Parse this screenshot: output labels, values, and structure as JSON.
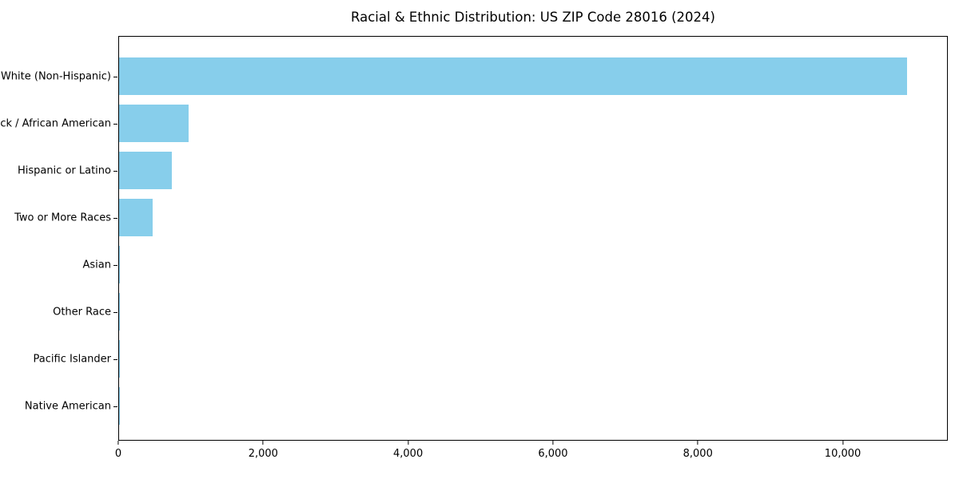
{
  "chart_data": {
    "type": "bar",
    "orientation": "horizontal",
    "title": "Racial & Ethnic Distribution: US ZIP Code 28016 (2024)",
    "categories": [
      "White (Non-Hispanic)",
      "Black / African American",
      "Hispanic or Latino",
      "Two or More Races",
      "Asian",
      "Other Race",
      "Pacific Islander",
      "Native American"
    ],
    "values": [
      10900,
      960,
      730,
      460,
      0,
      0,
      0,
      0
    ],
    "xlabel": "",
    "ylabel": "",
    "xlim": [
      0,
      11450
    ],
    "x_ticks": [
      0,
      2000,
      4000,
      6000,
      8000,
      10000
    ],
    "x_tick_labels": [
      "0",
      "2,000",
      "4,000",
      "6,000",
      "8,000",
      "10,000"
    ],
    "bar_color": "#87CEEB",
    "frame_color": "#000000",
    "background_color": "#ffffff",
    "grid": false,
    "legend": false
  }
}
